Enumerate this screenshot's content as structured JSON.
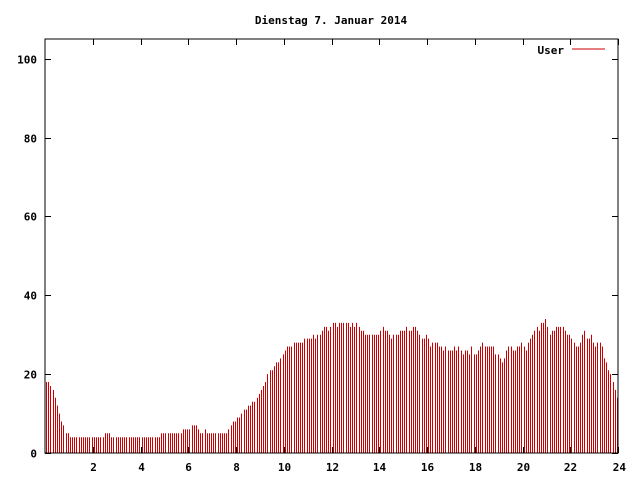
{
  "chart_data": {
    "type": "bar",
    "title": "Dienstag 7. Januar 2014",
    "xlabel": "",
    "ylabel": "",
    "xlim": [
      0,
      24
    ],
    "ylim": [
      0,
      105
    ],
    "x_ticks": [
      2,
      4,
      6,
      8,
      10,
      12,
      14,
      16,
      18,
      20,
      22,
      24
    ],
    "y_ticks": [
      0,
      20,
      40,
      60,
      80,
      100
    ],
    "grid": false,
    "legend_position": "top-right",
    "bar_color": "#cc0000",
    "series": [
      {
        "name": "User",
        "x_step_hours": 0.0833,
        "values": [
          18,
          18,
          17,
          16,
          14,
          12,
          10,
          8,
          7,
          5,
          5,
          4,
          4,
          4,
          4,
          4,
          4,
          4,
          4,
          4,
          4,
          4,
          4,
          4,
          4,
          4,
          4,
          5,
          5,
          5,
          4,
          4,
          4,
          4,
          4,
          4,
          4,
          4,
          4,
          4,
          4,
          4,
          4,
          4,
          4,
          4,
          4,
          4,
          4,
          4,
          4,
          4,
          4,
          5,
          5,
          5,
          5,
          5,
          5,
          5,
          5,
          5,
          5,
          6,
          6,
          6,
          6,
          7,
          7,
          7,
          6,
          5,
          5,
          6,
          5,
          5,
          5,
          5,
          5,
          5,
          5,
          5,
          5,
          5,
          6,
          7,
          8,
          8,
          9,
          9,
          10,
          11,
          11,
          12,
          12,
          13,
          13,
          14,
          15,
          16,
          17,
          18,
          20,
          21,
          21,
          22,
          23,
          23,
          24,
          25,
          26,
          27,
          27,
          27,
          28,
          28,
          28,
          28,
          28,
          29,
          29,
          29,
          29,
          30,
          29,
          30,
          30,
          31,
          32,
          32,
          31,
          32,
          33,
          33,
          32,
          33,
          33,
          33,
          33,
          33,
          32,
          33,
          32,
          33,
          32,
          31,
          31,
          30,
          30,
          30,
          30,
          30,
          30,
          30,
          31,
          32,
          31,
          31,
          30,
          29,
          30,
          30,
          30,
          31,
          31,
          31,
          32,
          31,
          31,
          32,
          32,
          31,
          30,
          29,
          29,
          30,
          29,
          27,
          28,
          28,
          28,
          27,
          27,
          26,
          27,
          26,
          26,
          26,
          27,
          26,
          27,
          26,
          25,
          26,
          26,
          25,
          27,
          25,
          25,
          26,
          27,
          28,
          27,
          27,
          27,
          27,
          27,
          25,
          25,
          24,
          23,
          24,
          26,
          27,
          27,
          26,
          26,
          27,
          27,
          28,
          27,
          26,
          28,
          29,
          30,
          31,
          32,
          31,
          33,
          33,
          34,
          32,
          30,
          31,
          31,
          32,
          32,
          32,
          32,
          31,
          30,
          30,
          29,
          28,
          27,
          27,
          28,
          30,
          31,
          29,
          29,
          30,
          28,
          27,
          28,
          28,
          27,
          24,
          23,
          21,
          20,
          18,
          16,
          14
        ]
      }
    ]
  }
}
